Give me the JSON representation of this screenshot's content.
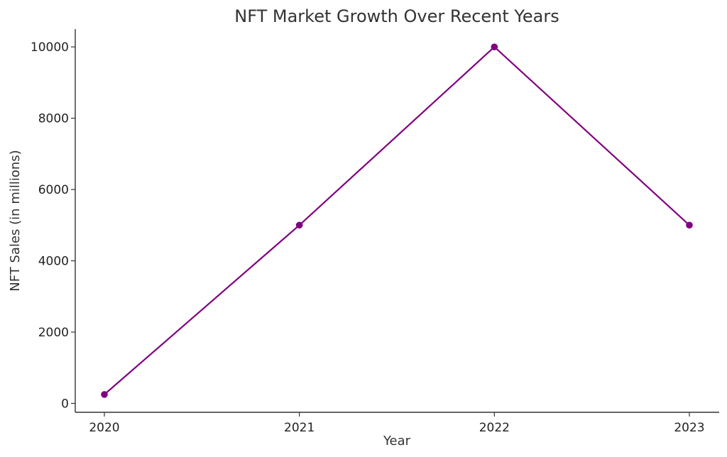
{
  "chart_data": {
    "type": "line",
    "title": "NFT Market Growth Over Recent Years",
    "xlabel": "Year",
    "ylabel": "NFT Sales (in millions)",
    "x": [
      "2020",
      "2021",
      "2022",
      "2023"
    ],
    "series": [
      {
        "values": [
          250,
          5000,
          10000,
          5000
        ],
        "color": "#800080",
        "marker": "circle"
      }
    ],
    "yticks": [
      0,
      2000,
      4000,
      6000,
      8000,
      10000
    ],
    "ylim": [
      -250,
      10500
    ],
    "grid": false,
    "legend": "none"
  }
}
